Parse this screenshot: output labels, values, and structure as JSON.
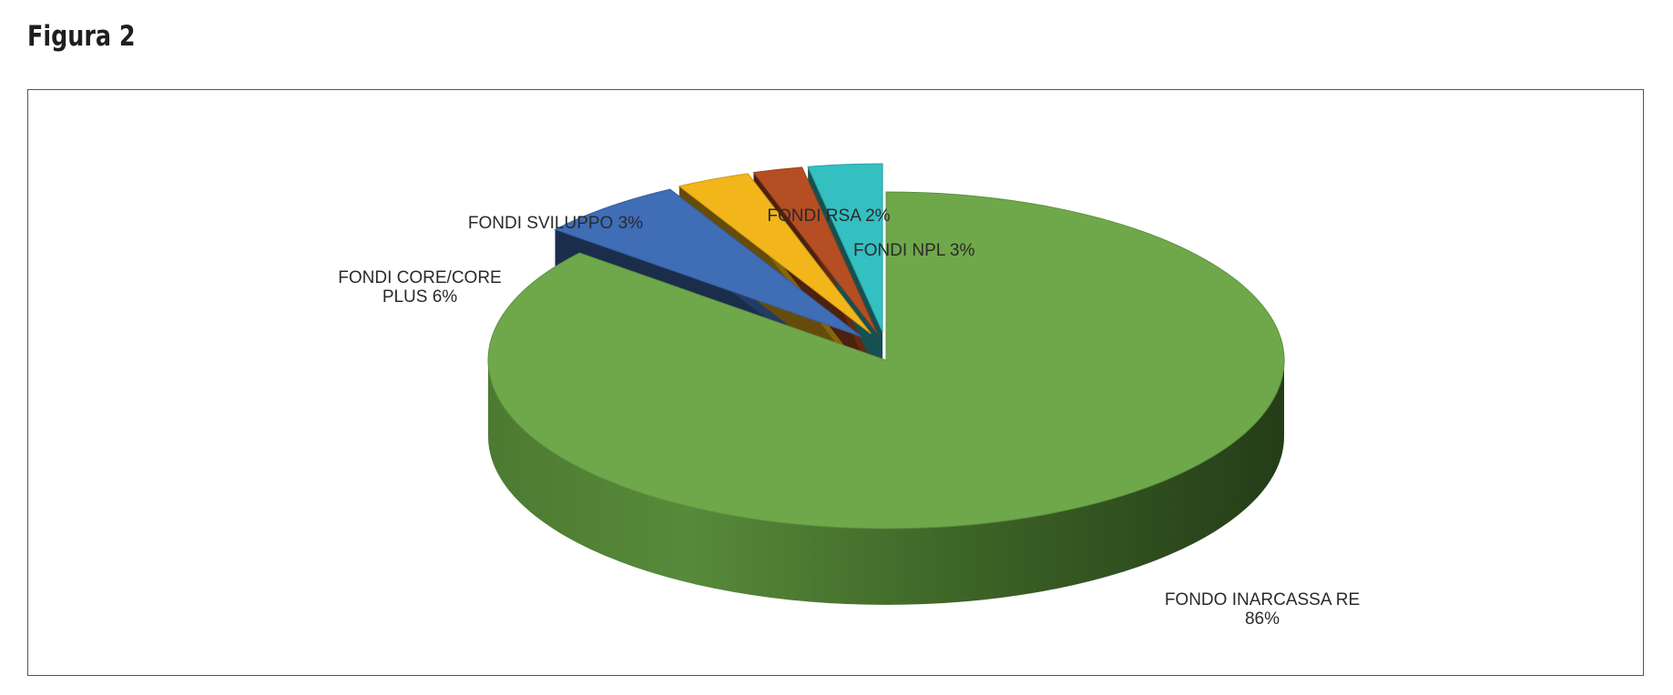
{
  "figure": {
    "title": "Figura 2"
  },
  "chart_data": {
    "type": "pie",
    "title": "",
    "start_from": "12 o'clock, clockwise",
    "style": "3d-exploded",
    "slices": [
      {
        "label": "FONDO INARCASSA RE 86%",
        "label_lines": [
          "FONDO INARCASSA RE",
          "86%"
        ],
        "value": 86,
        "color": "#6fa84a"
      },
      {
        "label": "FONDI CORE/CORE PLUS 6%",
        "label_lines": [
          "FONDI CORE/CORE",
          "PLUS 6%"
        ],
        "value": 6,
        "color": "#3f6db6"
      },
      {
        "label": "FONDI SVILUPPO 3%",
        "label_lines": [
          "FONDI SVILUPPO 3%"
        ],
        "value": 3,
        "color": "#f2b51a"
      },
      {
        "label": "FONDI RSA 2%",
        "label_lines": [
          "FONDI RSA 2%"
        ],
        "value": 2,
        "color": "#b54e22"
      },
      {
        "label": "FONDI NPL 3%",
        "label_lines": [
          "FONDI NPL 3%"
        ],
        "value": 3,
        "color": "#34bfc0"
      }
    ],
    "legend": "none"
  }
}
